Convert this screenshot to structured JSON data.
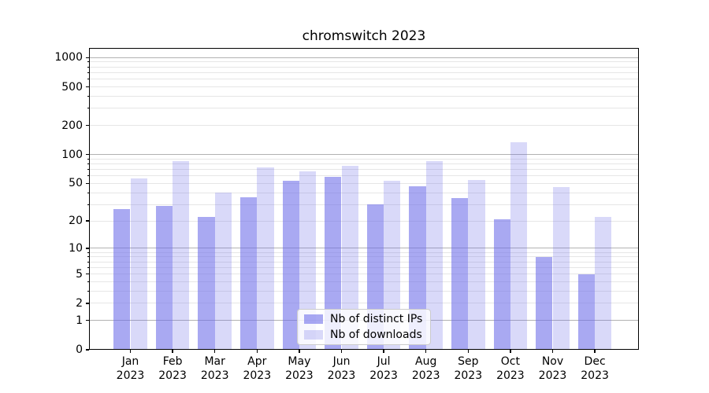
{
  "chart_data": {
    "type": "bar",
    "title": "chromswitch 2023",
    "categories": [
      "Jan 2023",
      "Feb 2023",
      "Mar 2023",
      "Apr 2023",
      "May 2023",
      "Jun 2023",
      "Jul 2023",
      "Aug 2023",
      "Sep 2023",
      "Oct 2023",
      "Nov 2023",
      "Dec 2023"
    ],
    "series": [
      {
        "name": "Nb of distinct IPs",
        "color": "#6a6ae8",
        "alpha": 0.58,
        "values": [
          27,
          29,
          22,
          36,
          53,
          59,
          30,
          47,
          35,
          21,
          8,
          5
        ]
      },
      {
        "name": "Nb of downloads",
        "color": "#6a6ae8",
        "alpha": 0.255,
        "values": [
          56,
          85,
          40,
          73,
          67,
          76,
          53,
          85,
          54,
          135,
          46,
          22
        ]
      }
    ],
    "y_axis": {
      "scale": "log1p",
      "ticks": [
        0,
        1,
        2,
        5,
        10,
        20,
        50,
        100,
        200,
        500,
        1000
      ],
      "major_gridlines": [
        1,
        10,
        100,
        1000
      ],
      "minor_gridline_mantissas": [
        2,
        3,
        4,
        5,
        6,
        7,
        8,
        9
      ],
      "minor_gridline_decades": [
        1,
        10,
        100
      ],
      "ylim": [
        0,
        1257
      ],
      "grid": true
    },
    "xlabel": "",
    "ylabel": "",
    "legend": {
      "position": "lower center",
      "entries": [
        "Nb of distinct IPs",
        "Nb of downloads"
      ]
    },
    "colors": {
      "bar_base": "#6a6ae8",
      "grid_major": "#b2b2b2",
      "grid_minor": "#e6e6e6",
      "spine": "#000000",
      "text": "#000000",
      "legend_border": "#cccccc"
    }
  }
}
